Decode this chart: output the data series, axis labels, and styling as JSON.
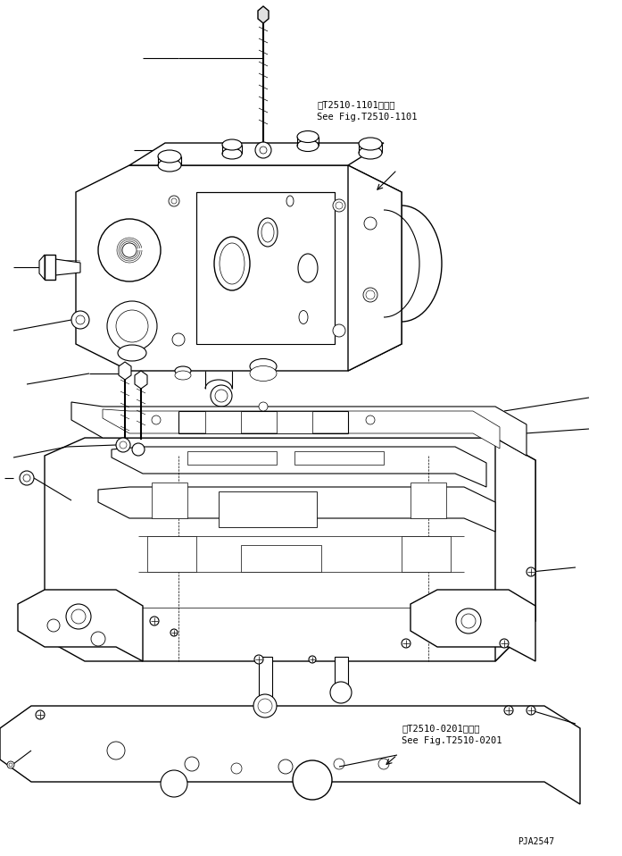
{
  "background_color": "#ffffff",
  "text_color": "#000000",
  "line_color": "#000000",
  "fig_width": 6.97,
  "fig_height": 9.58,
  "dpi": 100,
  "annotation1_line1": "第T2510-1101図参照",
  "annotation1_line2": "See Fig.T2510-1101",
  "annotation2_line1": "第T2510-0201図参照",
  "annotation2_line2": "See Fig.T2510-0201",
  "watermark": "PJA2547",
  "font_size_annotation": 7.5,
  "font_size_watermark": 7
}
